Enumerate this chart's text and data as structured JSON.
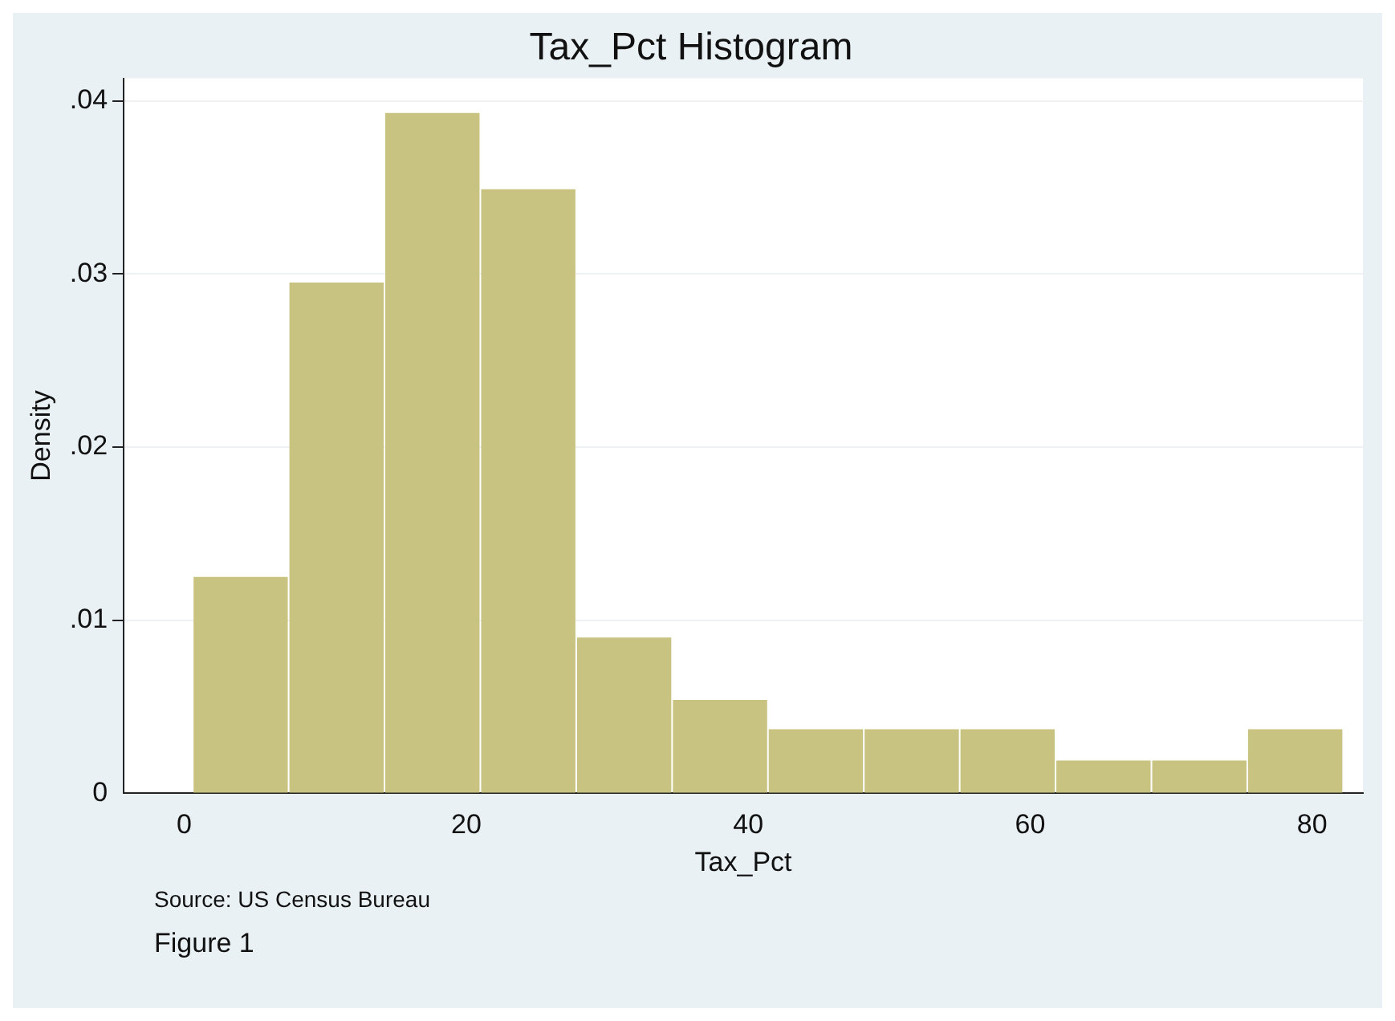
{
  "chart_data": {
    "type": "histogram",
    "title": "Tax_Pct Histogram",
    "xlabel": "Tax_Pct",
    "ylabel": "Density",
    "bins": [
      0.6,
      7.4,
      14.2,
      21.0,
      27.8,
      34.6,
      41.4,
      48.2,
      55.0,
      61.8,
      68.6,
      75.4,
      82.2
    ],
    "values": [
      0.0125,
      0.0295,
      0.0393,
      0.0349,
      0.009,
      0.0054,
      0.0037,
      0.0037,
      0.0037,
      0.0019,
      0.0019,
      0.0037
    ],
    "color": "#c9c381",
    "xlim": [
      -4.3,
      83.6
    ],
    "xticks": [
      0,
      20,
      40,
      60,
      80
    ],
    "ylim": [
      0,
      0.0413
    ],
    "yticks": [
      0,
      {
        "value": 0.01,
        "label": ".01"
      },
      {
        "value": 0.02,
        "label": ".02"
      },
      {
        "value": 0.03,
        "label": ".03"
      },
      {
        "value": 0.04,
        "label": ".04"
      }
    ],
    "grid": "y",
    "legend": false,
    "annotations": [
      "Source: US Census Bureau",
      "Figure 1"
    ]
  }
}
